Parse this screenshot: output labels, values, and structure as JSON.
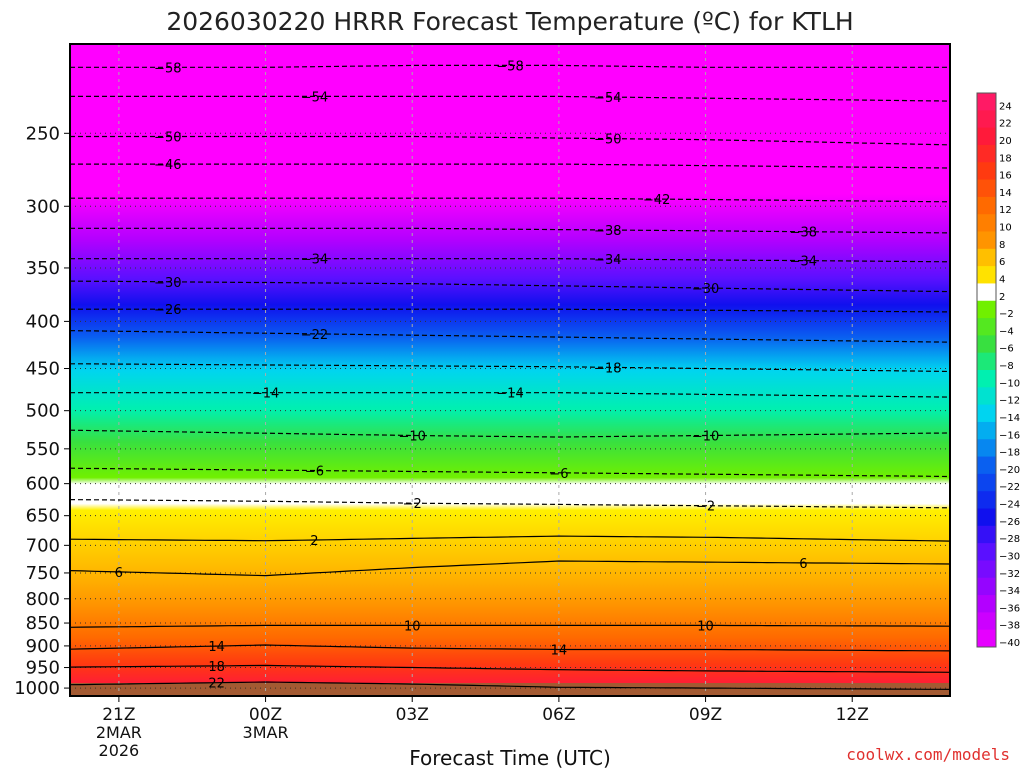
{
  "chart_data": {
    "type": "heatmap",
    "title": "2026030220 HRRR Forecast Temperature (ºC) for KTLH",
    "xlabel": "Forecast Time (UTC)",
    "ylabel": "",
    "credit": "coolwx.com/models",
    "x_ticks": [
      {
        "hour": 21,
        "label": "21Z",
        "sub": [
          "2MAR",
          "2026"
        ]
      },
      {
        "hour": 24,
        "label": "00Z",
        "sub": [
          "3MAR"
        ]
      },
      {
        "hour": 27,
        "label": "03Z",
        "sub": []
      },
      {
        "hour": 30,
        "label": "06Z",
        "sub": []
      },
      {
        "hour": 33,
        "label": "09Z",
        "sub": []
      },
      {
        "hour": 36,
        "label": "12Z",
        "sub": []
      }
    ],
    "xlim": [
      20,
      38
    ],
    "ylim": [
      1020,
      200
    ],
    "y_ticks": [
      250,
      300,
      350,
      400,
      450,
      500,
      550,
      600,
      650,
      700,
      750,
      800,
      850,
      900,
      950,
      1000
    ],
    "colorbar": {
      "levels": [
        24,
        22,
        20,
        18,
        16,
        14,
        12,
        10,
        8,
        6,
        4,
        2,
        -2,
        -4,
        -6,
        -8,
        -10,
        -12,
        -14,
        -16,
        -18,
        -20,
        -22,
        -24,
        -26,
        -28,
        -30,
        -32,
        -34,
        -36,
        -38,
        -40
      ],
      "labels": [
        "24",
        "22",
        "20",
        "18",
        "16",
        "14",
        "12",
        "10",
        "8",
        "6",
        "4",
        "2",
        "−2",
        "−4",
        "−6",
        "−8",
        "−10",
        "−12",
        "−14",
        "−16",
        "−18",
        "−20",
        "−22",
        "−24",
        "−26",
        "−28",
        "−30",
        "−32",
        "−34",
        "−36",
        "−38",
        "−40"
      ]
    },
    "isotherms": [
      {
        "value": -58,
        "label": "−58",
        "p": [
          212,
          212,
          211,
          211,
          212,
          212
        ],
        "labels_at": [
          22.0,
          29.0
        ]
      },
      {
        "value": -54,
        "label": "−54",
        "p": [
          228,
          228,
          228,
          228,
          229,
          230
        ],
        "labels_at": [
          25.0,
          31.0
        ]
      },
      {
        "value": -50,
        "label": "−50",
        "p": [
          252,
          252,
          252,
          253,
          254,
          256
        ],
        "labels_at": [
          22.0,
          31.0
        ]
      },
      {
        "value": -46,
        "label": "−46",
        "p": [
          270,
          270,
          270,
          270,
          271,
          272
        ],
        "labels_at": [
          22.0
        ]
      },
      {
        "value": -42,
        "label": "−42",
        "p": [
          294,
          294,
          294,
          294,
          295,
          296
        ],
        "labels_at": [
          32.0
        ]
      },
      {
        "value": -38,
        "label": "−38",
        "p": [
          317,
          317,
          317,
          318,
          319,
          320
        ],
        "labels_at": [
          31.0,
          35.0
        ]
      },
      {
        "value": -34,
        "label": "−34",
        "p": [
          342,
          342,
          342,
          342,
          343,
          344
        ],
        "labels_at": [
          25.0,
          31.0,
          35.0
        ]
      },
      {
        "value": -30,
        "label": "−30",
        "p": [
          362,
          363,
          364,
          366,
          368,
          370
        ],
        "labels_at": [
          22.0,
          33.0
        ]
      },
      {
        "value": -26,
        "label": "−26",
        "p": [
          388,
          388,
          388,
          388,
          389,
          390
        ],
        "labels_at": [
          22.0
        ]
      },
      {
        "value": -22,
        "label": "−22",
        "p": [
          410,
          412,
          414,
          416,
          418,
          420
        ],
        "labels_at": [
          25.0
        ]
      },
      {
        "value": -18,
        "label": "−18",
        "p": [
          445,
          446,
          447,
          448,
          450,
          452
        ],
        "labels_at": [
          31.0
        ]
      },
      {
        "value": -14,
        "label": "−14",
        "p": [
          478,
          478,
          478,
          478,
          480,
          482
        ],
        "labels_at": [
          24.0,
          29.0
        ]
      },
      {
        "value": -10,
        "label": "−10",
        "p": [
          526,
          529,
          532,
          534,
          532,
          530
        ],
        "labels_at": [
          27.0,
          33.0
        ]
      },
      {
        "value": -6,
        "label": "−6",
        "p": [
          578,
          580,
          582,
          584,
          586,
          588
        ],
        "labels_at": [
          25.0,
          30.0
        ]
      },
      {
        "value": -2,
        "label": "−2",
        "p": [
          625,
          627,
          630,
          632,
          634,
          636
        ],
        "labels_at": [
          27.0,
          33.0
        ]
      },
      {
        "value": 2,
        "label": "2",
        "p": [
          690,
          692,
          688,
          684,
          686,
          690
        ],
        "labels_at": [
          25.0
        ]
      },
      {
        "value": 6,
        "label": "6",
        "p": [
          748,
          755,
          740,
          728,
          730,
          732
        ],
        "labels_at": [
          21.0,
          35.0
        ]
      },
      {
        "value": 10,
        "label": "10",
        "p": [
          858,
          855,
          855,
          855,
          855,
          856
        ],
        "labels_at": [
          27.0,
          33.0
        ]
      },
      {
        "value": 14,
        "label": "14",
        "p": [
          905,
          898,
          905,
          908,
          908,
          910
        ],
        "labels_at": [
          23.0,
          30.0
        ]
      },
      {
        "value": 18,
        "label": "18",
        "p": [
          948,
          945,
          950,
          955,
          958,
          960
        ],
        "labels_at": [
          23.0
        ]
      },
      {
        "value": 22,
        "label": "22",
        "p": [
          990,
          985,
          990,
          998,
          1000,
          1002
        ],
        "labels_at": [
          23.0
        ]
      }
    ]
  }
}
